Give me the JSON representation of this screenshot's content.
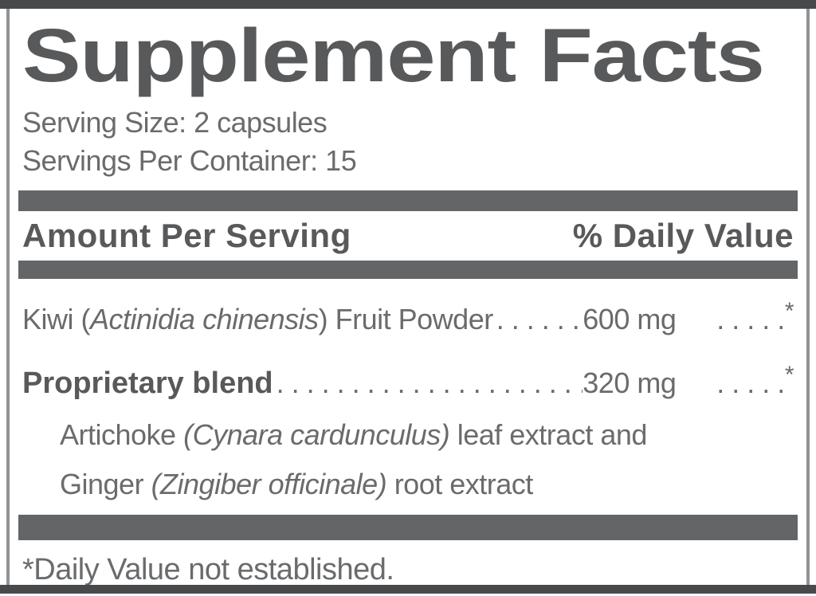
{
  "label": {
    "title": "Supplement Facts",
    "serving_size": "Serving Size: 2 capsules",
    "servings_per_container": "Servings Per Container: 15",
    "columns": {
      "amount_per_serving": "Amount Per Serving",
      "percent_daily_value": "% Daily Value"
    },
    "ingredients": [
      {
        "name_prefix": "Kiwi (",
        "latin_name": "Actinidia chinensis",
        "name_suffix": ") Fruit Powder",
        "leader_dots": ". . . . . . . . . . . . . . . . . . . . . . . . . . . . . .",
        "amount": "600 mg",
        "trailing_dots": ". . . . .",
        "daily_value": "*"
      },
      {
        "name_bold": "Proprietary blend",
        "leader_dots": ". . . . . . . . . . . . . . . . . . . . . . . . . . . . . .",
        "amount": "320 mg",
        "trailing_dots": ". . . . .",
        "daily_value": "*"
      }
    ],
    "blend_components": [
      {
        "prefix": "Artichoke ",
        "latin": "(Cynara cardunculus)",
        "suffix": " leaf extract and"
      },
      {
        "prefix": "Ginger ",
        "latin": "(Zingiber officinale)",
        "suffix": " root extract"
      }
    ],
    "footnote": "*Daily Value not established.",
    "colors": {
      "text_gray": "#6a6b6d",
      "heading_gray": "#58595b",
      "bar_gray": "#646567",
      "rule_dark": "#48494b",
      "border_gray": "#929396",
      "background": "#ffffff"
    }
  }
}
